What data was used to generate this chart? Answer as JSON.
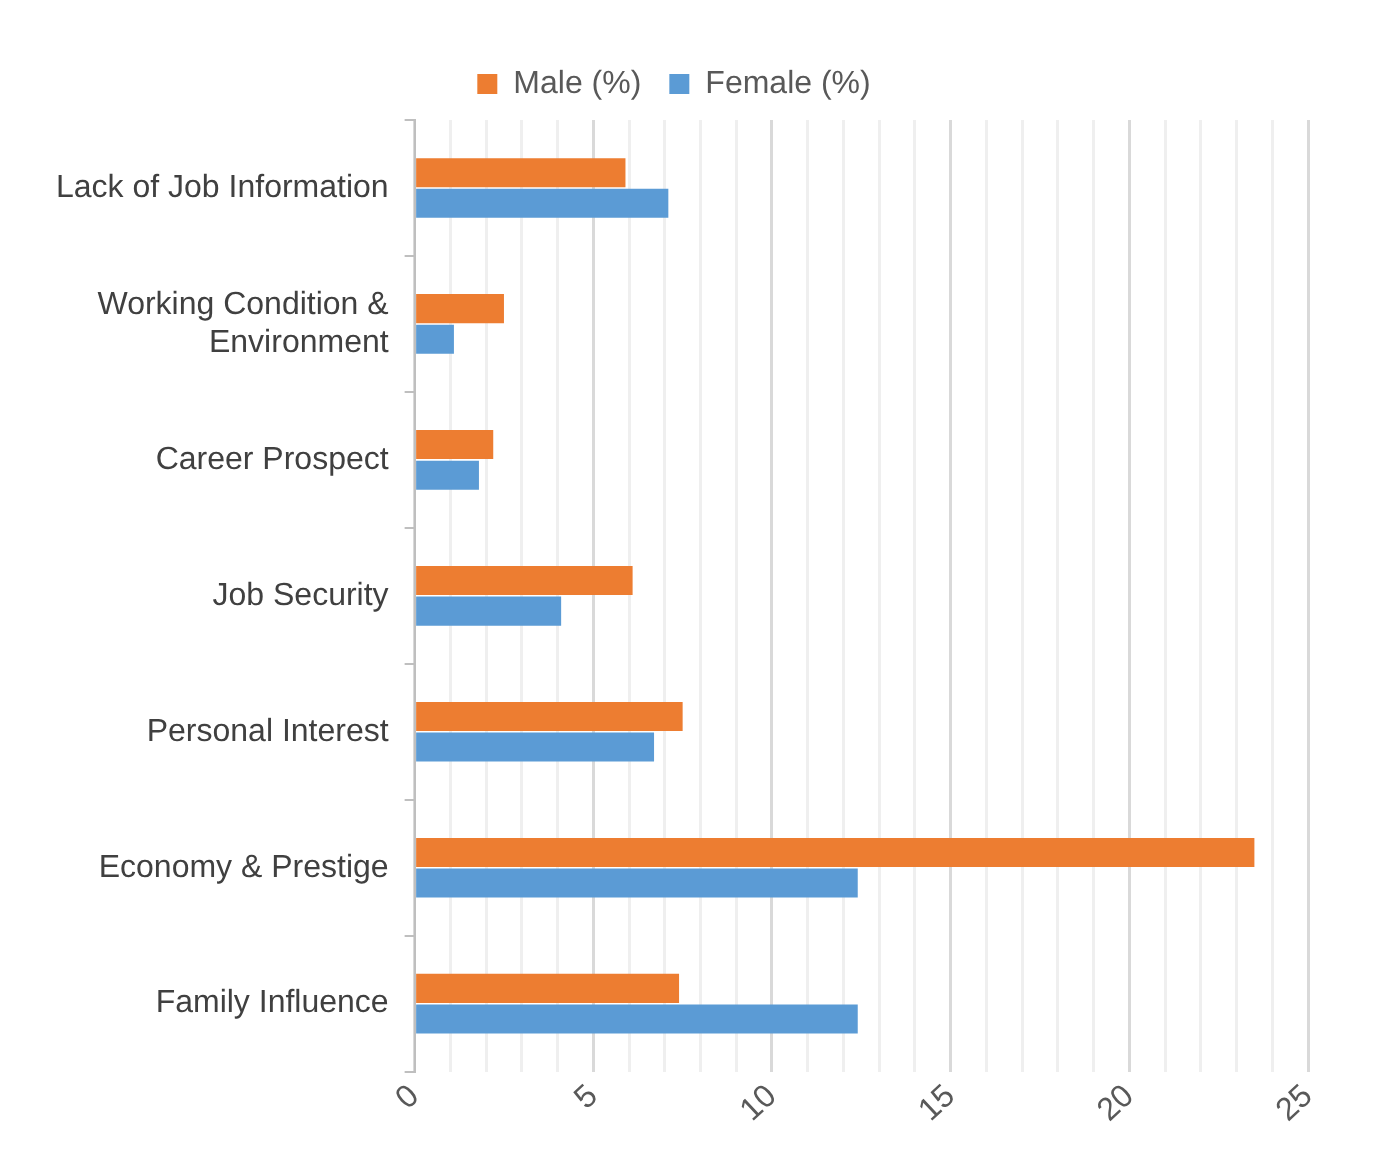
{
  "chart_data": {
    "type": "bar",
    "orientation": "horizontal",
    "categories": [
      "Lack of Job Information",
      "Working Condition & Environment",
      "Career Prospect",
      "Job Security",
      "Personal Interest",
      "Economy & Prestige",
      "Family Influence"
    ],
    "series": [
      {
        "name": "Male (%)",
        "color": "#ed7d31",
        "values": [
          5.9,
          2.5,
          2.2,
          6.1,
          7.5,
          23.5,
          7.4
        ]
      },
      {
        "name": "Female (%)",
        "color": "#5b9bd5",
        "values": [
          7.1,
          1.1,
          1.8,
          4.1,
          6.7,
          12.4,
          12.4
        ]
      }
    ],
    "xlim": [
      0,
      25
    ],
    "xticks": [
      0,
      {
        "value": 1,
        "label": null
      },
      {
        "value": 2,
        "label": null
      },
      {
        "value": 3,
        "label": null
      },
      {
        "value": 4,
        "label": null
      },
      5,
      {
        "value": 6,
        "label": null
      },
      {
        "value": 7,
        "label": null
      },
      {
        "value": 8,
        "label": null
      },
      {
        "value": 9,
        "label": null
      },
      10,
      {
        "value": 11,
        "label": null
      },
      {
        "value": 12,
        "label": null
      },
      {
        "value": 13,
        "label": null
      },
      {
        "value": 14,
        "label": null
      },
      15,
      {
        "value": 16,
        "label": null
      },
      {
        "value": 17,
        "label": null
      },
      {
        "value": 18,
        "label": null
      },
      {
        "value": 19,
        "label": null
      },
      20,
      {
        "value": 21,
        "label": null
      },
      {
        "value": 22,
        "label": null
      },
      {
        "value": 23,
        "label": null
      },
      {
        "value": 24,
        "label": null
      },
      25
    ],
    "grid": "x",
    "legend": "top"
  }
}
